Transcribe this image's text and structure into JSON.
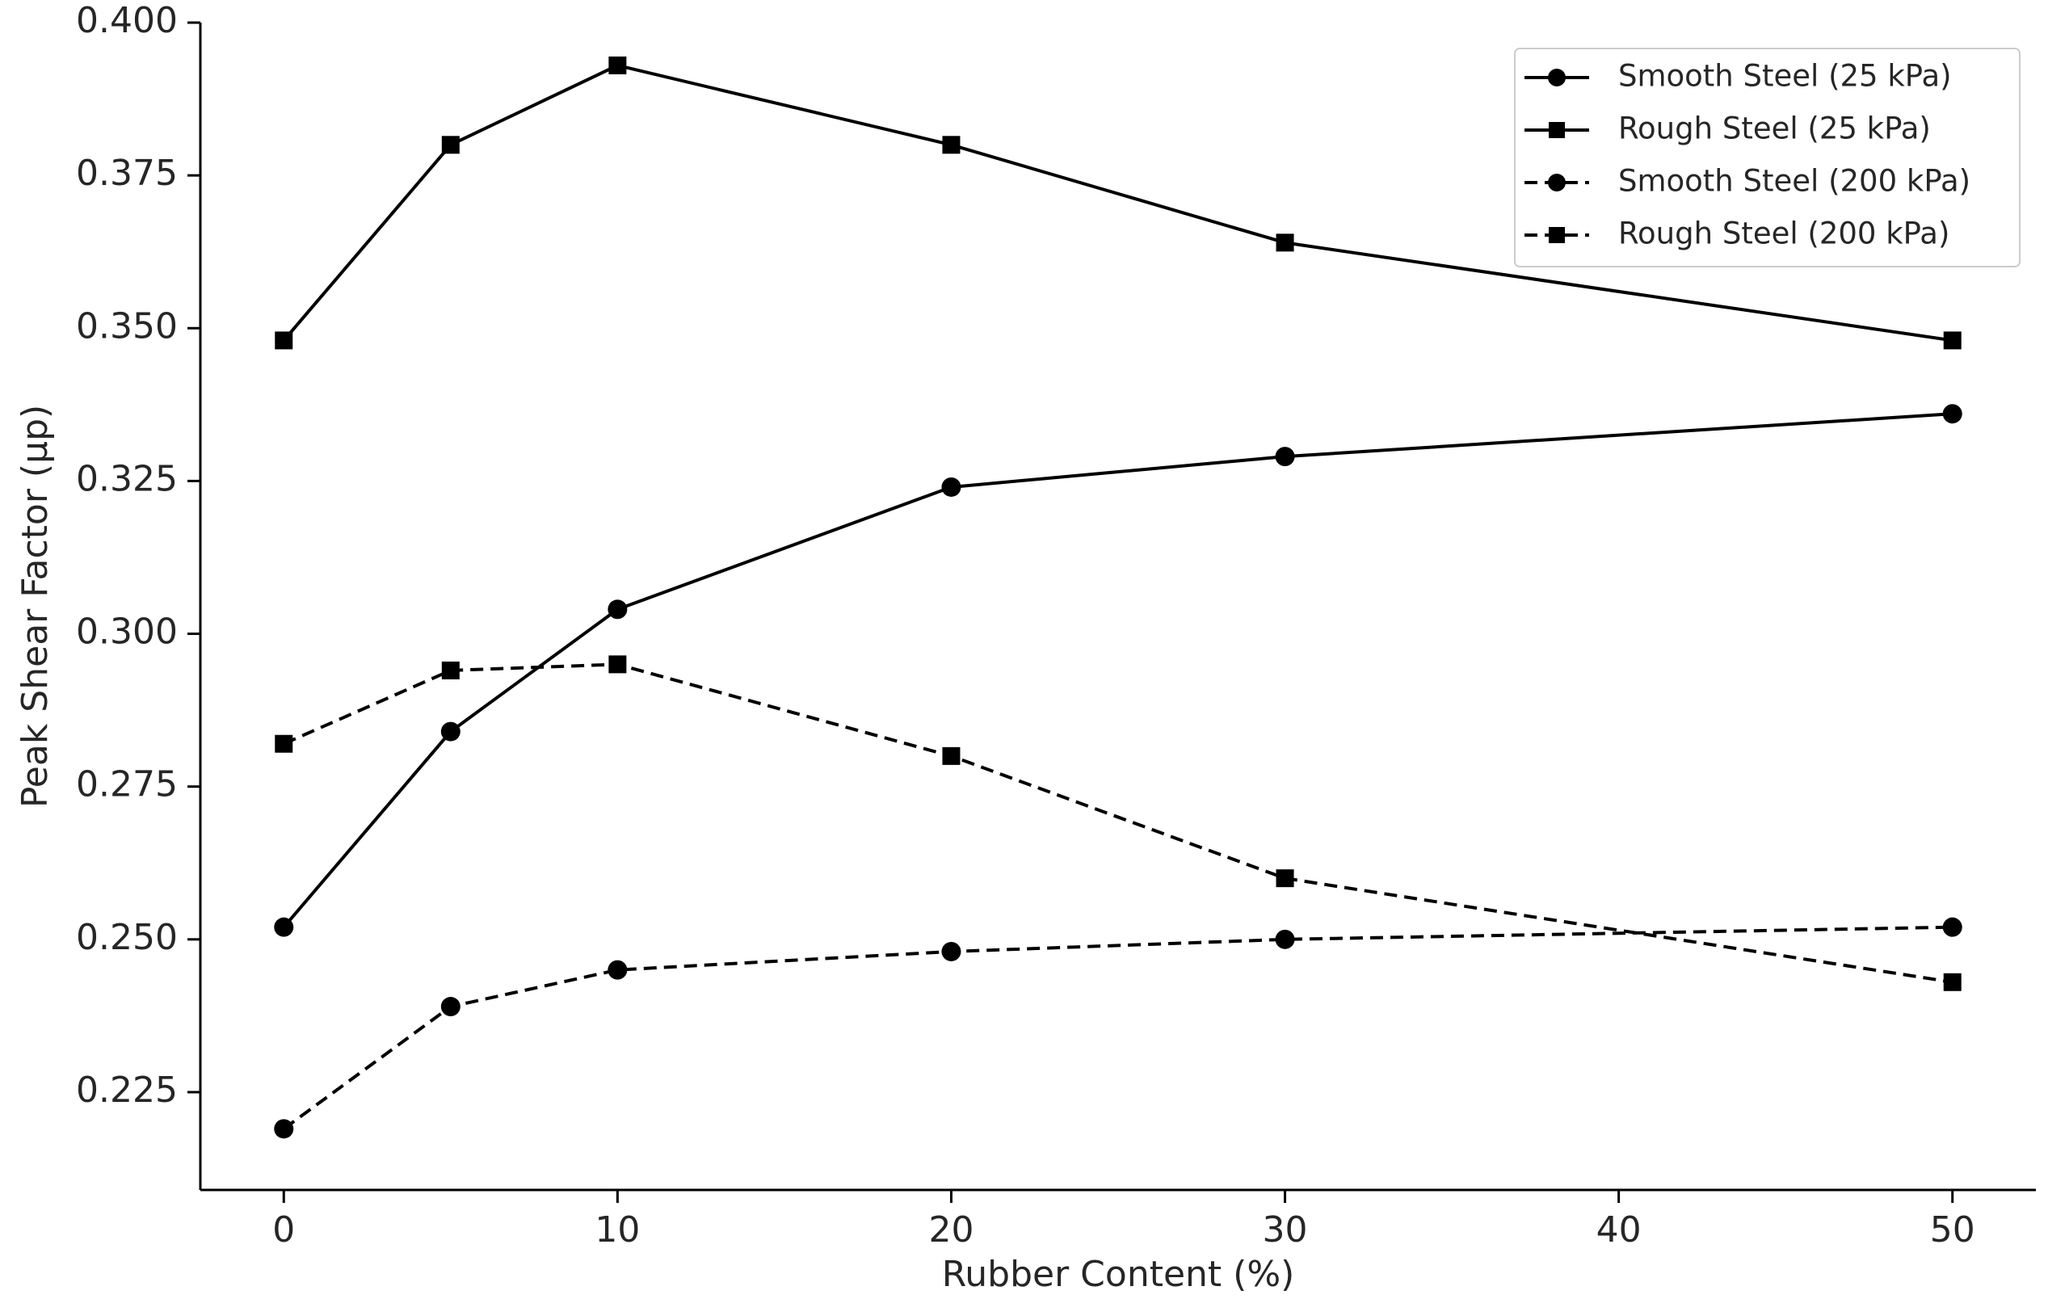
{
  "chart_data": {
    "type": "line",
    "title": "",
    "xlabel": "Rubber Content (%)",
    "ylabel": "Peak Shear Factor (μp)",
    "xlim": [
      -2.5,
      52.5
    ],
    "ylim": [
      0.209,
      0.4
    ],
    "xticks": [
      0,
      10,
      20,
      30,
      40,
      50
    ],
    "xtick_labels": [
      "0",
      "10",
      "20",
      "30",
      "40",
      "50"
    ],
    "yticks": [
      0.225,
      0.25,
      0.275,
      0.3,
      0.325,
      0.35,
      0.375,
      0.4
    ],
    "ytick_labels": [
      "0.225",
      "0.250",
      "0.275",
      "0.300",
      "0.325",
      "0.350",
      "0.375",
      "0.400"
    ],
    "grid": false,
    "legend_position": "top-right",
    "x": [
      0,
      5,
      10,
      20,
      30,
      50
    ],
    "series": [
      {
        "name": "Smooth Steel (25 kPa)",
        "values": [
          0.252,
          0.284,
          0.304,
          0.324,
          0.329,
          0.336
        ],
        "marker": "circle",
        "line_style": "solid",
        "color": "#000000"
      },
      {
        "name": "Rough Steel (25 kPa)",
        "values": [
          0.348,
          0.38,
          0.393,
          0.38,
          0.364,
          0.348
        ],
        "marker": "square",
        "line_style": "solid",
        "color": "#000000"
      },
      {
        "name": "Smooth Steel (200 kPa)",
        "values": [
          0.219,
          0.239,
          0.245,
          0.248,
          0.25,
          0.252
        ],
        "marker": "circle",
        "line_style": "dashed",
        "color": "#000000"
      },
      {
        "name": "Rough Steel (200 kPa)",
        "values": [
          0.282,
          0.294,
          0.295,
          0.28,
          0.26,
          0.243
        ],
        "marker": "square",
        "line_style": "dashed",
        "color": "#000000"
      }
    ]
  }
}
